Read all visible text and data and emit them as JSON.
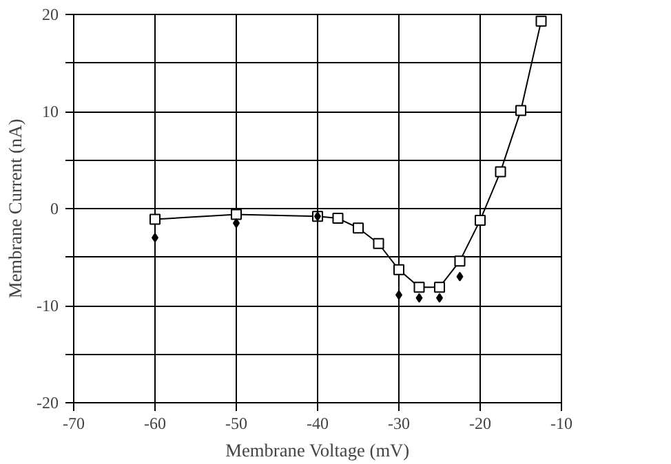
{
  "chart_data": {
    "type": "line",
    "xlabel": "Membrane Voltage (mV)",
    "ylabel": "Membrane Current (nA)",
    "xlim": [
      -70,
      -10
    ],
    "xticks": [
      -70,
      -60,
      -50,
      -40,
      -30,
      -20,
      -10
    ],
    "ylim": [
      -20,
      20
    ],
    "yticks": [
      -20,
      {
        "value": -15,
        "label": null
      },
      -10,
      {
        "value": -5,
        "label": null
      },
      0,
      {
        "value": 5,
        "label": null
      },
      10,
      {
        "value": 15,
        "label": null
      },
      20
    ],
    "grid": true,
    "series": [
      {
        "marker": "square",
        "color": "#000000",
        "x": [
          -60,
          -50,
          -40,
          -37.5,
          -35,
          -32.5,
          -30,
          -27.5,
          -25,
          -22.5,
          -20,
          -17.5,
          -15,
          -12.5
        ],
        "values": [
          -1.1,
          -0.6,
          -0.8,
          -1.0,
          -2.0,
          -3.6,
          -6.3,
          -8.1,
          -8.1,
          -5.4,
          -1.2,
          3.8,
          10.1,
          19.3
        ]
      },
      {
        "type": "scatter",
        "marker": "diamond",
        "color": "#000000",
        "x": [
          -60,
          -50,
          -40,
          -30,
          -27.5,
          -25,
          -22.5
        ],
        "values": [
          -3.0,
          -1.5,
          -0.8,
          -8.9,
          -9.2,
          -9.2,
          -7.0
        ]
      }
    ]
  }
}
